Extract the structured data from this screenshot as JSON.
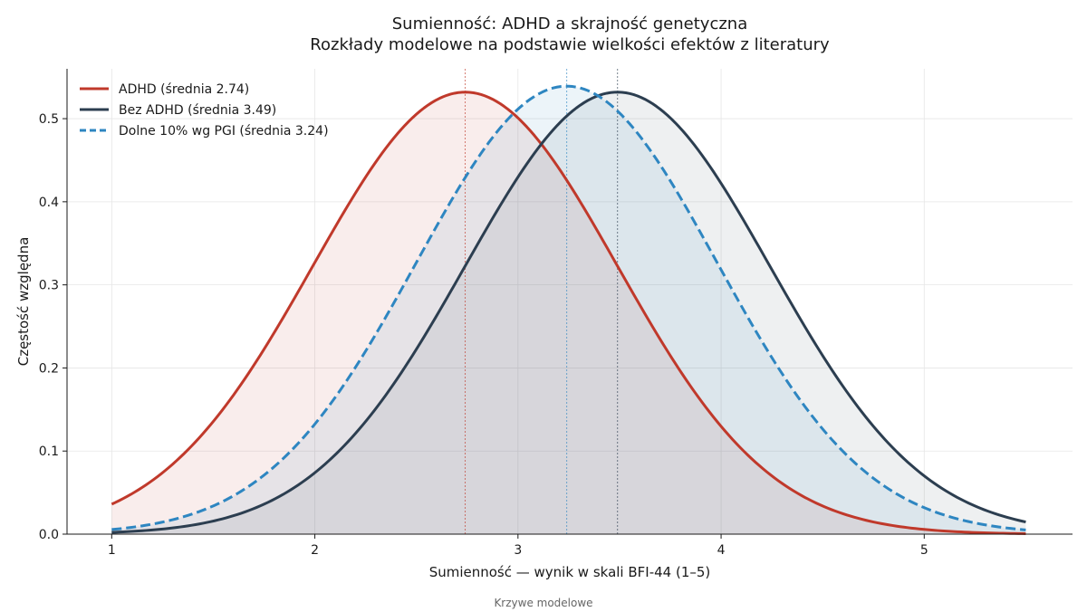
{
  "chart_data": {
    "type": "line",
    "title": "Sumienność: ADHD a skrajność genetyczna",
    "subtitle": "Rozkłady modelowe na podstawie wielkości efektów z literatury",
    "xlabel": "Sumienność — wynik w skali BFI-44 (1–5)",
    "ylabel": "Częstość względna",
    "footer": "Krzywe modelowe",
    "xlim": [
      0.78,
      5.73
    ],
    "ylim": [
      0,
      0.56
    ],
    "x_range": [
      1,
      5.5
    ],
    "xticks": [
      1,
      2,
      3,
      4,
      5
    ],
    "yticks": [
      0.0,
      0.1,
      0.2,
      0.3,
      0.4,
      0.5
    ],
    "xtick_labels": [
      "1",
      "2",
      "3",
      "4",
      "5"
    ],
    "ytick_labels": [
      "0.0",
      "0.1",
      "0.2",
      "0.3",
      "0.4",
      "0.5"
    ],
    "grid": true,
    "legend_position": "top-left",
    "series": [
      {
        "name": "ADHD  (średnia 2.74)",
        "mean": 2.74,
        "sd": 0.75,
        "color": "#c0392b",
        "dash": "solid",
        "fill_opacity": 0.09
      },
      {
        "name": "Bez ADHD  (średnia 3.49)",
        "mean": 3.49,
        "sd": 0.75,
        "color": "#2c3e50",
        "dash": "solid",
        "fill_opacity": 0.08
      },
      {
        "name": "Dolne 10% wg PGI  (średnia 3.24)",
        "mean": 3.24,
        "sd": 0.74,
        "color": "#2e86c1",
        "dash": "dashed",
        "fill_opacity": 0.09
      }
    ]
  }
}
